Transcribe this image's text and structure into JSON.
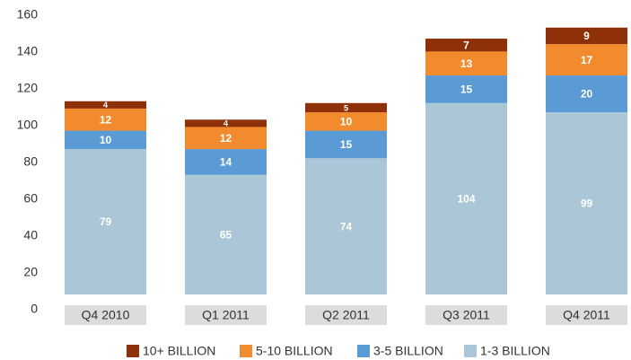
{
  "chart_data": {
    "type": "stacked_bar",
    "categories": [
      "Q4 2010",
      "Q1 2011",
      "Q2 2011",
      "Q3 2011",
      "Q4 2011"
    ],
    "series": [
      {
        "name": "10+ BILLION",
        "color": "#8e3108",
        "values": [
          4,
          4,
          5,
          7,
          9
        ]
      },
      {
        "name": "5-10 BILLION",
        "color": "#f28b2d",
        "values": [
          12,
          12,
          10,
          13,
          17
        ]
      },
      {
        "name": "3-5 BILLION",
        "color": "#5b9bd5",
        "values": [
          10,
          14,
          15,
          15,
          20
        ]
      },
      {
        "name": "1-3 BILLION",
        "color": "#abc7d7",
        "values": [
          79,
          65,
          74,
          104,
          99
        ]
      }
    ],
    "ylim": [
      0,
      160
    ],
    "yticks": [
      0,
      20,
      40,
      60,
      80,
      100,
      120,
      140,
      160
    ],
    "grid": false,
    "legend": "bottom"
  }
}
